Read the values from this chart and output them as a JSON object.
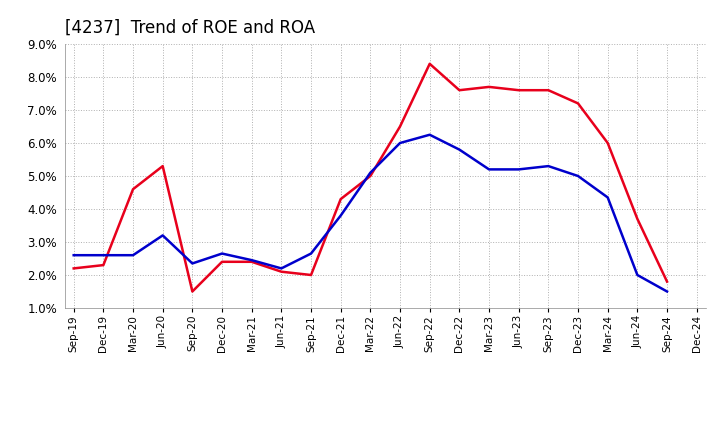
{
  "title": "[4237]  Trend of ROE and ROA",
  "x_labels": [
    "Sep-19",
    "Dec-19",
    "Mar-20",
    "Jun-20",
    "Sep-20",
    "Dec-20",
    "Mar-21",
    "Jun-21",
    "Sep-21",
    "Dec-21",
    "Mar-22",
    "Jun-22",
    "Sep-22",
    "Dec-22",
    "Mar-23",
    "Jun-23",
    "Sep-23",
    "Dec-23",
    "Mar-24",
    "Jun-24",
    "Sep-24",
    "Dec-24"
  ],
  "roe": [
    2.2,
    2.3,
    4.6,
    5.3,
    1.5,
    2.4,
    2.4,
    2.1,
    2.0,
    4.3,
    5.0,
    6.5,
    8.4,
    7.6,
    7.7,
    7.6,
    7.6,
    7.2,
    6.0,
    3.7,
    1.8,
    null
  ],
  "roa": [
    2.6,
    2.6,
    2.6,
    3.2,
    2.35,
    2.65,
    2.45,
    2.2,
    2.65,
    3.8,
    5.1,
    6.0,
    6.25,
    5.8,
    5.2,
    5.2,
    5.3,
    5.0,
    4.35,
    2.0,
    1.5,
    null
  ],
  "roe_color": "#e8001c",
  "roa_color": "#0000cc",
  "ylim": [
    1.0,
    9.0
  ],
  "yticks": [
    1.0,
    2.0,
    3.0,
    4.0,
    5.0,
    6.0,
    7.0,
    8.0,
    9.0
  ],
  "background_color": "#ffffff",
  "plot_bg_color": "#ffffff",
  "grid_color": "#b0b0b0",
  "title_fontsize": 12,
  "legend_fontsize": 10,
  "line_width": 1.8
}
